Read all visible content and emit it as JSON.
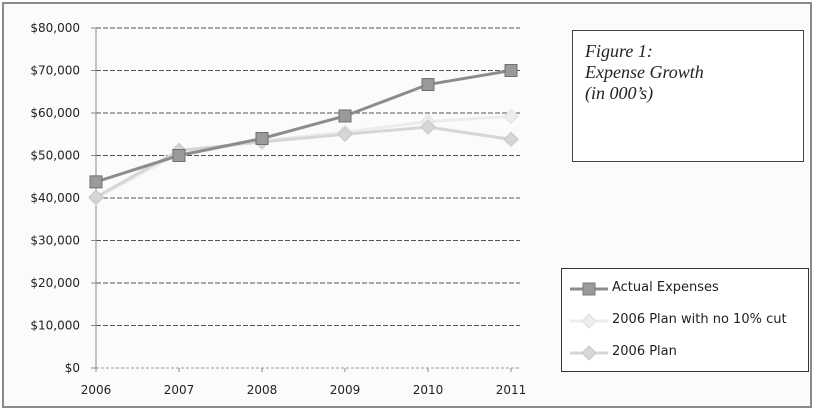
{
  "figure": {
    "caption_lines": [
      "Figure 1:",
      "Expense Growth",
      "(in 000’s)"
    ]
  },
  "chart_data": {
    "type": "line",
    "x": [
      "2006",
      "2007",
      "2008",
      "2009",
      "2010",
      "2011"
    ],
    "ylim": [
      0,
      80000
    ],
    "yticks": [
      "$0",
      "$10,000",
      "$20,000",
      "$30,000",
      "$40,000",
      "$50,000",
      "$60,000",
      "$70,000",
      "$80,000"
    ],
    "grid": true,
    "legend_position": "right",
    "series": [
      {
        "name": "Actual Expenses",
        "values": [
          43800,
          50000,
          54000,
          59300,
          66700,
          70000
        ],
        "color": "#8c8c8c",
        "marker": "square"
      },
      {
        "name": "2006 Plan with no 10% cut",
        "values": [
          40000,
          50500,
          53500,
          55500,
          58000,
          59200
        ],
        "color": "#ececec",
        "marker": "diamond"
      },
      {
        "name": "2006 Plan",
        "values": [
          40200,
          51200,
          53200,
          55000,
          56700,
          53800
        ],
        "color": "#d6d6d6",
        "marker": "diamond"
      }
    ]
  }
}
